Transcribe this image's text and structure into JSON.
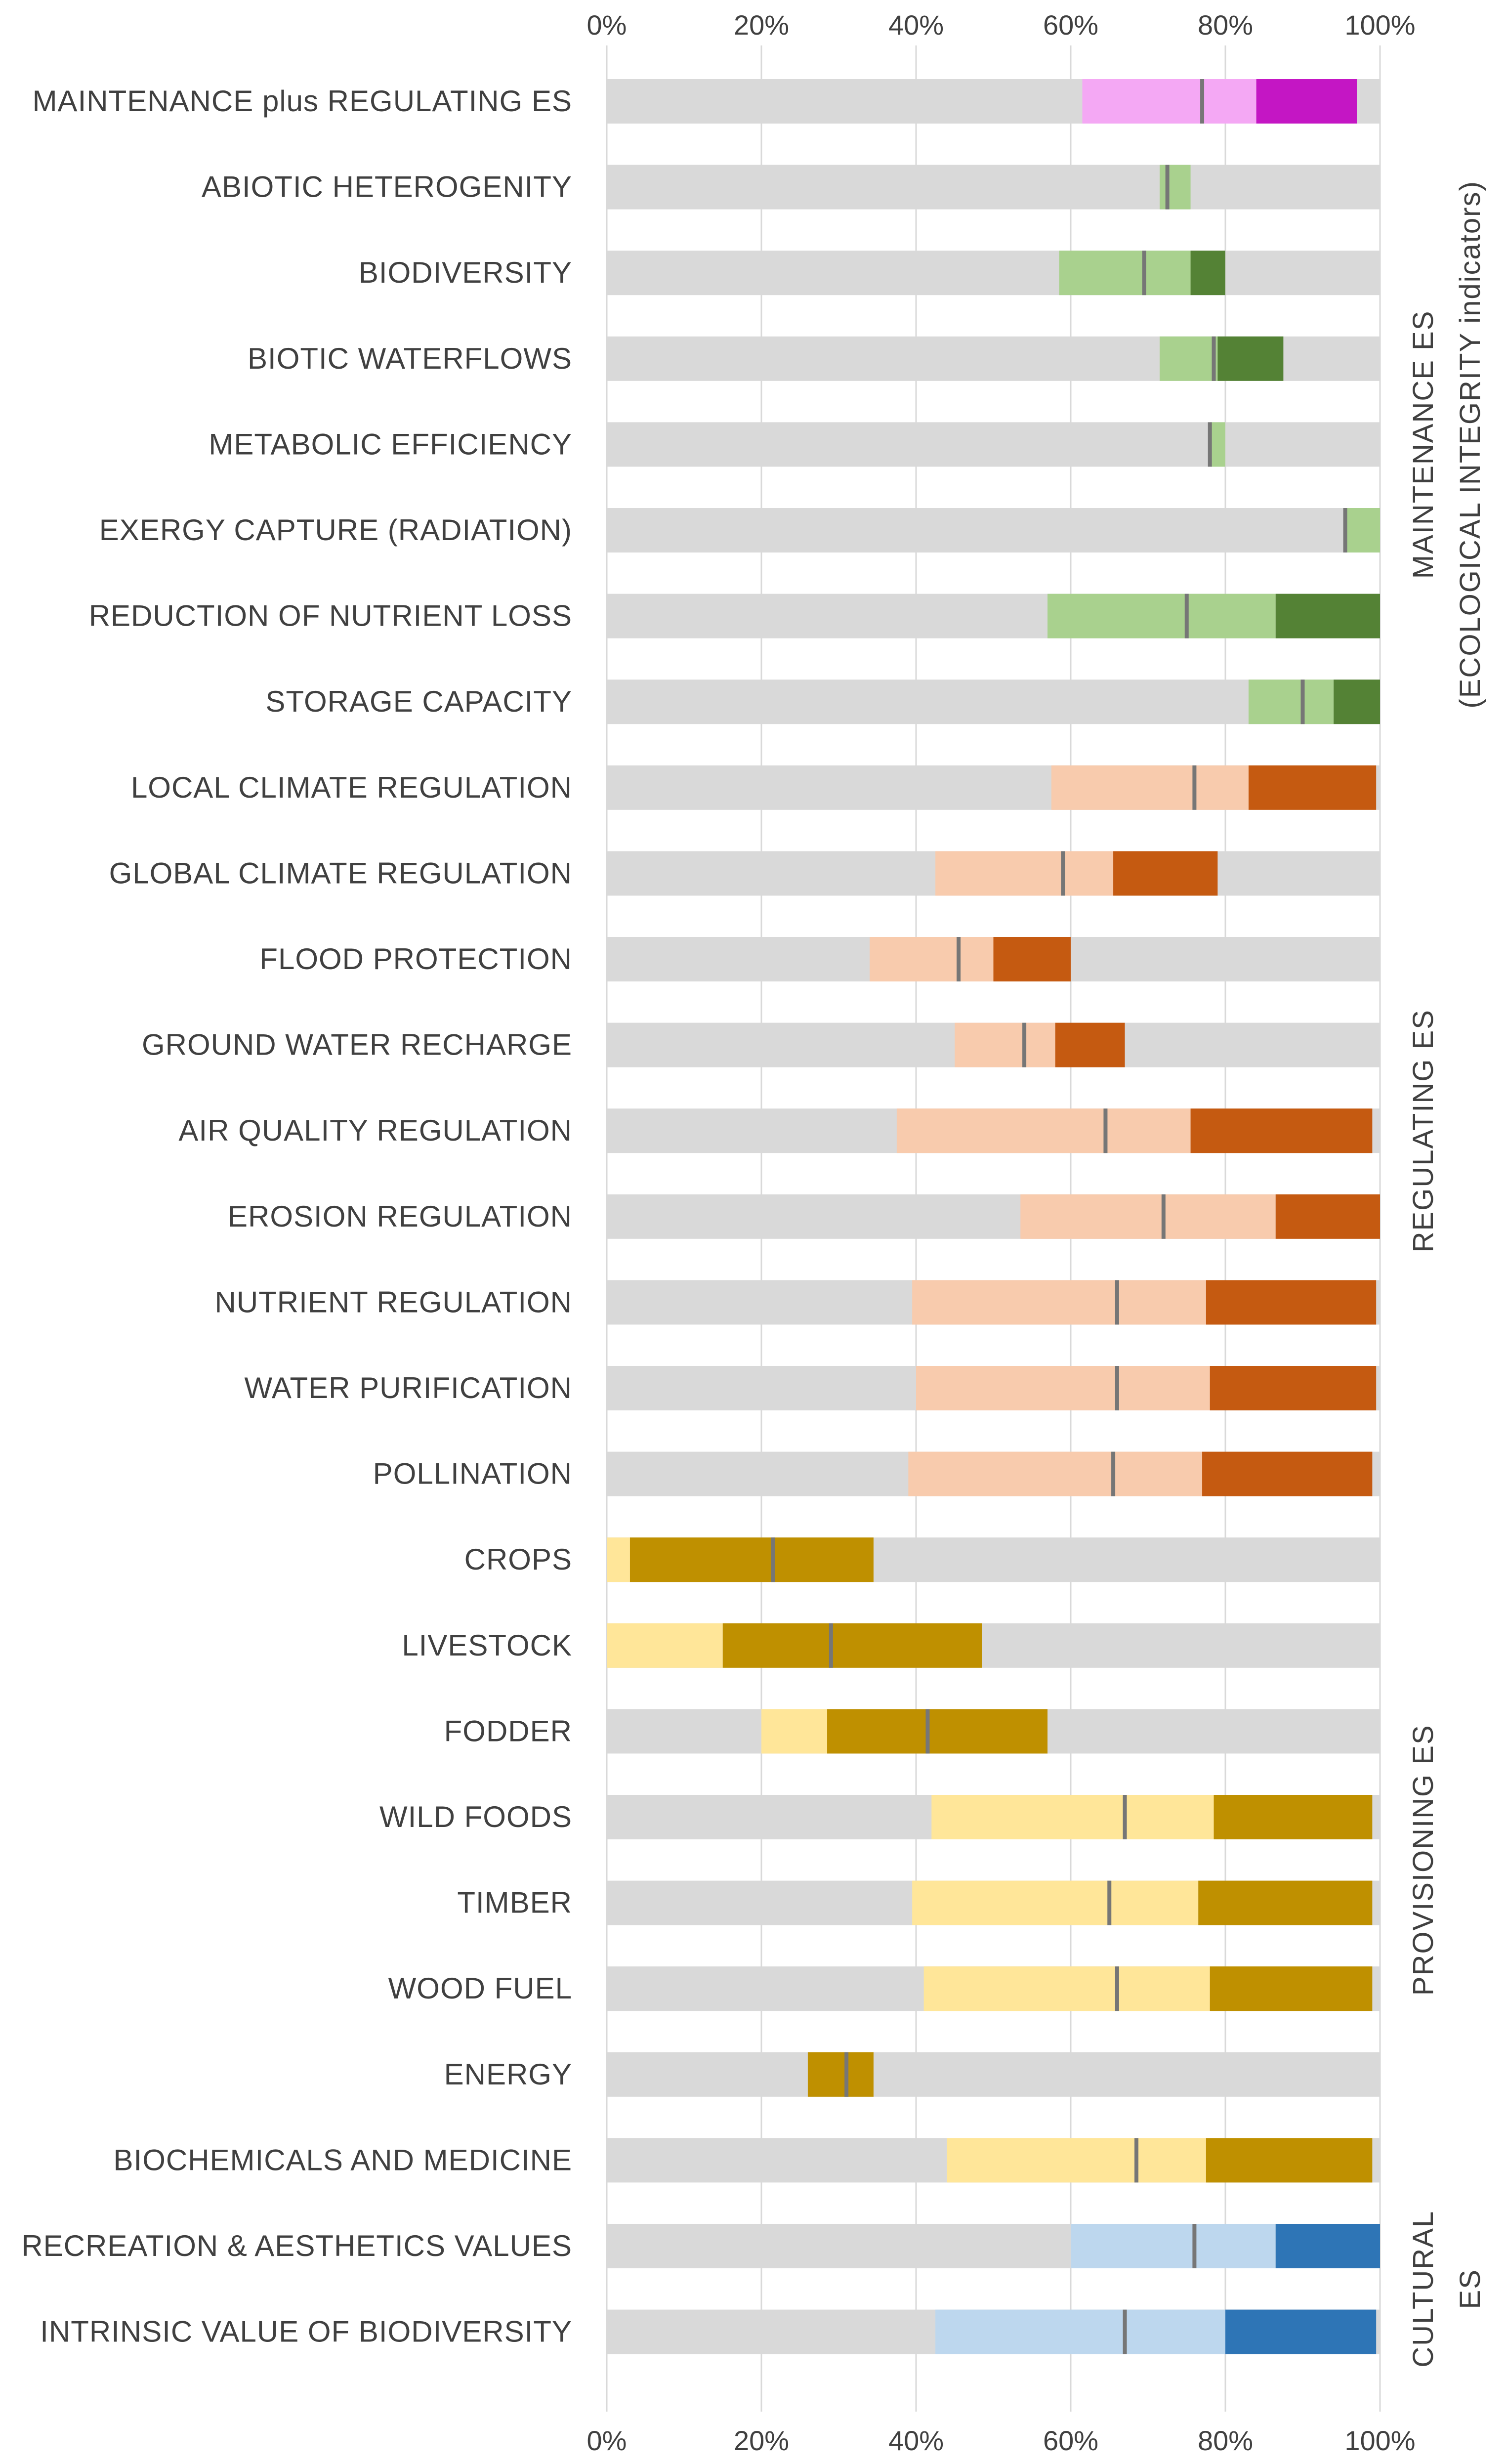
{
  "chart_data": {
    "type": "stacked-horizontal-bar",
    "x_ticks": [
      "0%",
      "20%",
      "40%",
      "60%",
      "80%",
      "100%"
    ],
    "xlim": [
      0,
      100
    ],
    "colors": {
      "background_bar": "#d9d9d9",
      "median_marker": "#767676",
      "gridline": "#d9d9d9",
      "combined_light": "#f4a8f4",
      "combined_dark": "#c416c4",
      "maintenance_light": "#a9d18e",
      "maintenance_dark": "#548235",
      "regulating_light": "#f8cbad",
      "regulating_dark": "#c55a11",
      "provisioning_light": "#ffe699",
      "provisioning_dark": "#bf9000",
      "cultural_light": "#bdd7ee",
      "cultural_dark": "#2e75b6"
    },
    "groups": [
      {
        "name": "MAINTENANCE ES",
        "subname": "(ECOLOGICAL INTEGRITY indicators)",
        "from": 1,
        "to": 7
      },
      {
        "name": "REGULATING ES",
        "subname": "",
        "from": 8,
        "to": 16
      },
      {
        "name": "PROVISIONING ES",
        "subname": "",
        "from": 17,
        "to": 24
      },
      {
        "name": "CULTURAL",
        "subname": "ES",
        "from": 25,
        "to": 26
      }
    ],
    "categories": [
      {
        "label": "MAINTENANCE plus REGULATING ES",
        "light_start": 61.5,
        "dark_start": 84,
        "end": 97,
        "median": 77,
        "palette": "combined"
      },
      {
        "label": "ABIOTIC HETEROGENITY",
        "light_start": 71.5,
        "dark_start": 75.5,
        "end": 75.5,
        "median": 72.5,
        "palette": "maintenance"
      },
      {
        "label": "BIODIVERSITY",
        "light_start": 58.5,
        "dark_start": 75.5,
        "end": 80,
        "median": 69.5,
        "palette": "maintenance"
      },
      {
        "label": "BIOTIC WATERFLOWS",
        "light_start": 71.5,
        "dark_start": 79,
        "end": 87.5,
        "median": 78.5,
        "palette": "maintenance"
      },
      {
        "label": "METABOLIC EFFICIENCY",
        "light_start": 78,
        "dark_start": 80,
        "end": 80,
        "median": 78,
        "palette": "maintenance"
      },
      {
        "label": "EXERGY CAPTURE (RADIATION)",
        "light_start": 95.5,
        "dark_start": 100,
        "end": 100,
        "median": 95.5,
        "palette": "maintenance"
      },
      {
        "label": "REDUCTION OF NUTRIENT LOSS",
        "light_start": 57,
        "dark_start": 86.5,
        "end": 100,
        "median": 75,
        "palette": "maintenance"
      },
      {
        "label": "STORAGE CAPACITY",
        "light_start": 83,
        "dark_start": 94,
        "end": 100,
        "median": 90,
        "palette": "maintenance"
      },
      {
        "label": "LOCAL CLIMATE REGULATION",
        "light_start": 57.5,
        "dark_start": 83,
        "end": 99.5,
        "median": 76,
        "palette": "regulating"
      },
      {
        "label": "GLOBAL CLIMATE REGULATION",
        "light_start": 42.5,
        "dark_start": 65.5,
        "end": 79,
        "median": 59,
        "palette": "regulating"
      },
      {
        "label": "FLOOD PROTECTION",
        "light_start": 34,
        "dark_start": 50,
        "end": 60,
        "median": 45.5,
        "palette": "regulating"
      },
      {
        "label": "GROUND WATER RECHARGE",
        "light_start": 45,
        "dark_start": 58,
        "end": 67,
        "median": 54,
        "palette": "regulating"
      },
      {
        "label": "AIR QUALITY REGULATION",
        "light_start": 37.5,
        "dark_start": 75.5,
        "end": 99,
        "median": 64.5,
        "palette": "regulating"
      },
      {
        "label": "EROSION REGULATION",
        "light_start": 53.5,
        "dark_start": 86.5,
        "end": 100,
        "median": 72,
        "palette": "regulating"
      },
      {
        "label": "NUTRIENT REGULATION",
        "light_start": 39.5,
        "dark_start": 77.5,
        "end": 99.5,
        "median": 66,
        "palette": "regulating"
      },
      {
        "label": "WATER PURIFICATION",
        "light_start": 40,
        "dark_start": 78,
        "end": 99.5,
        "median": 66,
        "palette": "regulating"
      },
      {
        "label": "POLLINATION",
        "light_start": 39,
        "dark_start": 77,
        "end": 99,
        "median": 65.5,
        "palette": "regulating"
      },
      {
        "label": "CROPS",
        "light_start": 0,
        "dark_start": 3,
        "end": 34.5,
        "median": 21.5,
        "palette": "provisioning"
      },
      {
        "label": "LIVESTOCK",
        "light_start": 0,
        "dark_start": 15,
        "end": 48.5,
        "median": 29,
        "palette": "provisioning"
      },
      {
        "label": "FODDER",
        "light_start": 20,
        "dark_start": 28.5,
        "end": 57,
        "median": 41.5,
        "palette": "provisioning"
      },
      {
        "label": "WILD FOODS",
        "light_start": 42,
        "dark_start": 78.5,
        "end": 99,
        "median": 67,
        "palette": "provisioning"
      },
      {
        "label": "TIMBER",
        "light_start": 39.5,
        "dark_start": 76.5,
        "end": 99,
        "median": 65,
        "palette": "provisioning"
      },
      {
        "label": "WOOD FUEL",
        "light_start": 41,
        "dark_start": 78,
        "end": 99,
        "median": 66,
        "palette": "provisioning"
      },
      {
        "label": "ENERGY",
        "light_start": 26,
        "dark_start": 26,
        "end": 34.5,
        "median": 31,
        "palette": "provisioning"
      },
      {
        "label": "BIOCHEMICALS AND MEDICINE",
        "light_start": 44,
        "dark_start": 77.5,
        "end": 99,
        "median": 68.5,
        "palette": "provisioning"
      },
      {
        "label": "RECREATION & AESTHETICS VALUES",
        "light_start": 60,
        "dark_start": 86.5,
        "end": 100,
        "median": 76,
        "palette": "cultural"
      },
      {
        "label": "INTRINSIC VALUE OF BIODIVERSITY",
        "light_start": 42.5,
        "dark_start": 80,
        "end": 99.5,
        "median": 67,
        "palette": "cultural"
      }
    ]
  }
}
